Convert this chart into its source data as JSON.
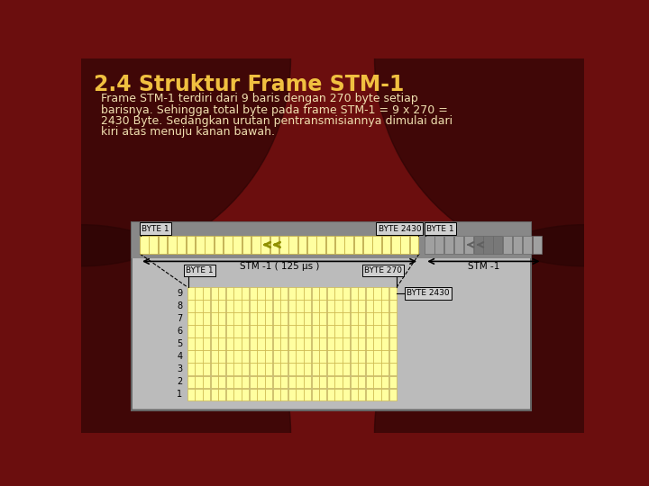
{
  "title": "2.4 Struktur Frame STM-1",
  "body_lines": [
    "Frame STM-1 terdiri dari 9 baris dengan 270 byte setiap",
    "barisnya. Sehingga total byte pada frame STM-1 = 9 x 270 =",
    "2430 Byte. Sedangkan urutan pentransmisiannya dimulai dari",
    "kiri atas menuju kanan bawah."
  ],
  "bg_color": "#6b0e0e",
  "bg_corner_color": "#2a0404",
  "title_color": "#f0c040",
  "body_color": "#f0e0b0",
  "panel_bg": "#aaaaaa",
  "panel_top_bar": "#888888",
  "cell_fill": "#ffffa0",
  "cell_edge": "#c8b040",
  "gray_cell_fill": "#a8a8a8",
  "gray_cell_edge": "#787878",
  "label_bg": "#d0d0d0",
  "num_cols_display": 27,
  "num_rows": 9,
  "stm1_label": "STM -1 ( 125 μs )",
  "stm1_label2": "STM -1",
  "byte1_top": "BYTE 1",
  "byte2430_top": "BYTE 2430",
  "byte1_top2": "BYTE 1",
  "byte1_grid": "BYTE 1",
  "byte270_grid": "BYTE 270",
  "byte2430_grid": "BYTE 2430"
}
